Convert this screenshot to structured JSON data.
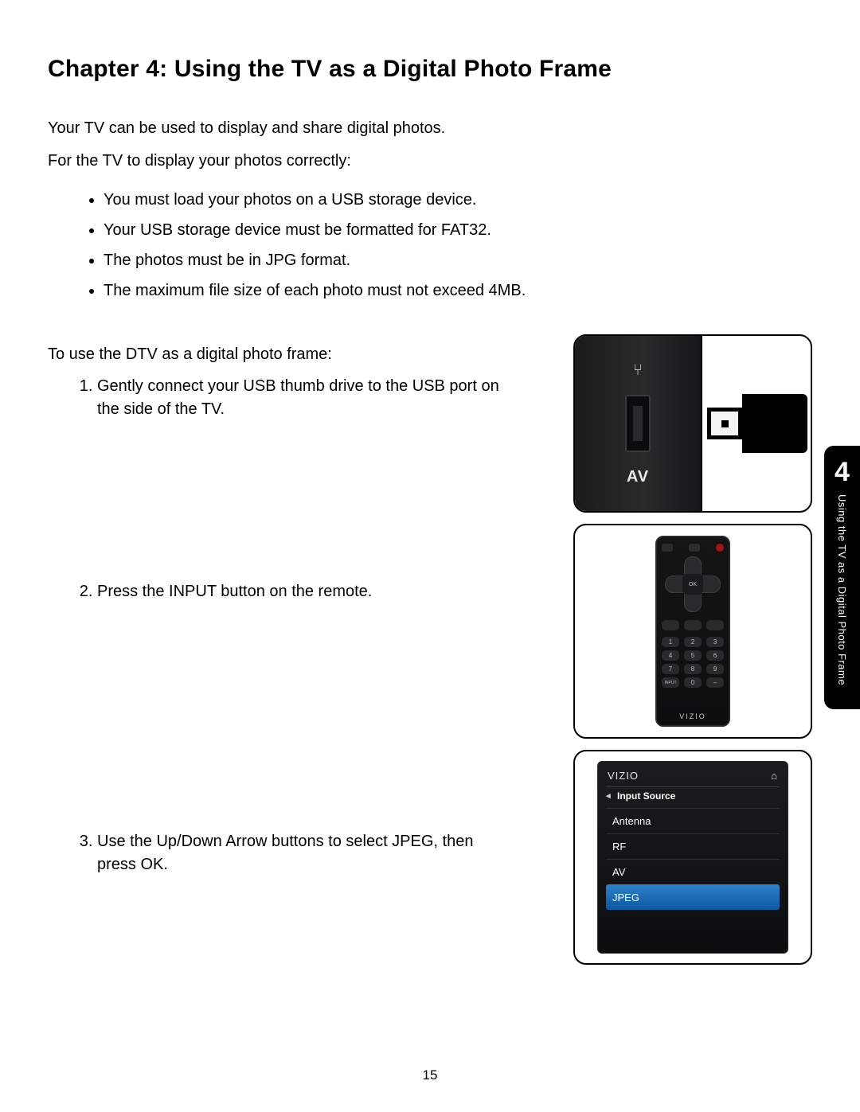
{
  "heading": "Chapter 4: Using the TV as a Digital Photo Frame",
  "intro_line1": "Your TV can be used to display and share digital photos.",
  "intro_line2": "For the TV to display your photos correctly:",
  "bullets": [
    "You must load your photos on a USB storage device.",
    "Your USB storage device must be formatted for FAT32.",
    "The photos must be in JPG format.",
    "The maximum file size of each photo must not exceed 4MB."
  ],
  "lead_in": "To use the DTV as a digital photo frame:",
  "steps": [
    "Gently connect your USB thumb drive to the USB port on the side of the TV.",
    "Press the INPUT button on the remote.",
    "Use the Up/Down Arrow buttons to select JPEG, then press OK."
  ],
  "fig1": {
    "usb_symbol": "⑂",
    "port_label": "AV"
  },
  "fig2": {
    "ok_label": "OK",
    "keypad": [
      "1",
      "2",
      "3",
      "4",
      "5",
      "6",
      "7",
      "8",
      "9",
      "INPUT",
      "0",
      "–"
    ],
    "brand": "VIZIO"
  },
  "fig3": {
    "brand": "VIZIO",
    "menu_title": "Input Source",
    "items": [
      "Antenna",
      "RF",
      "AV",
      "JPEG"
    ],
    "selected_index": 3,
    "selected_bg": "#1a6ab5"
  },
  "side_tab": {
    "number": "4",
    "text": "Using the TV as a Digital Photo Frame"
  },
  "page_number": "15",
  "colors": {
    "text": "#000000",
    "background": "#ffffff",
    "tab_bg": "#000000",
    "tab_text": "#ffffff"
  }
}
